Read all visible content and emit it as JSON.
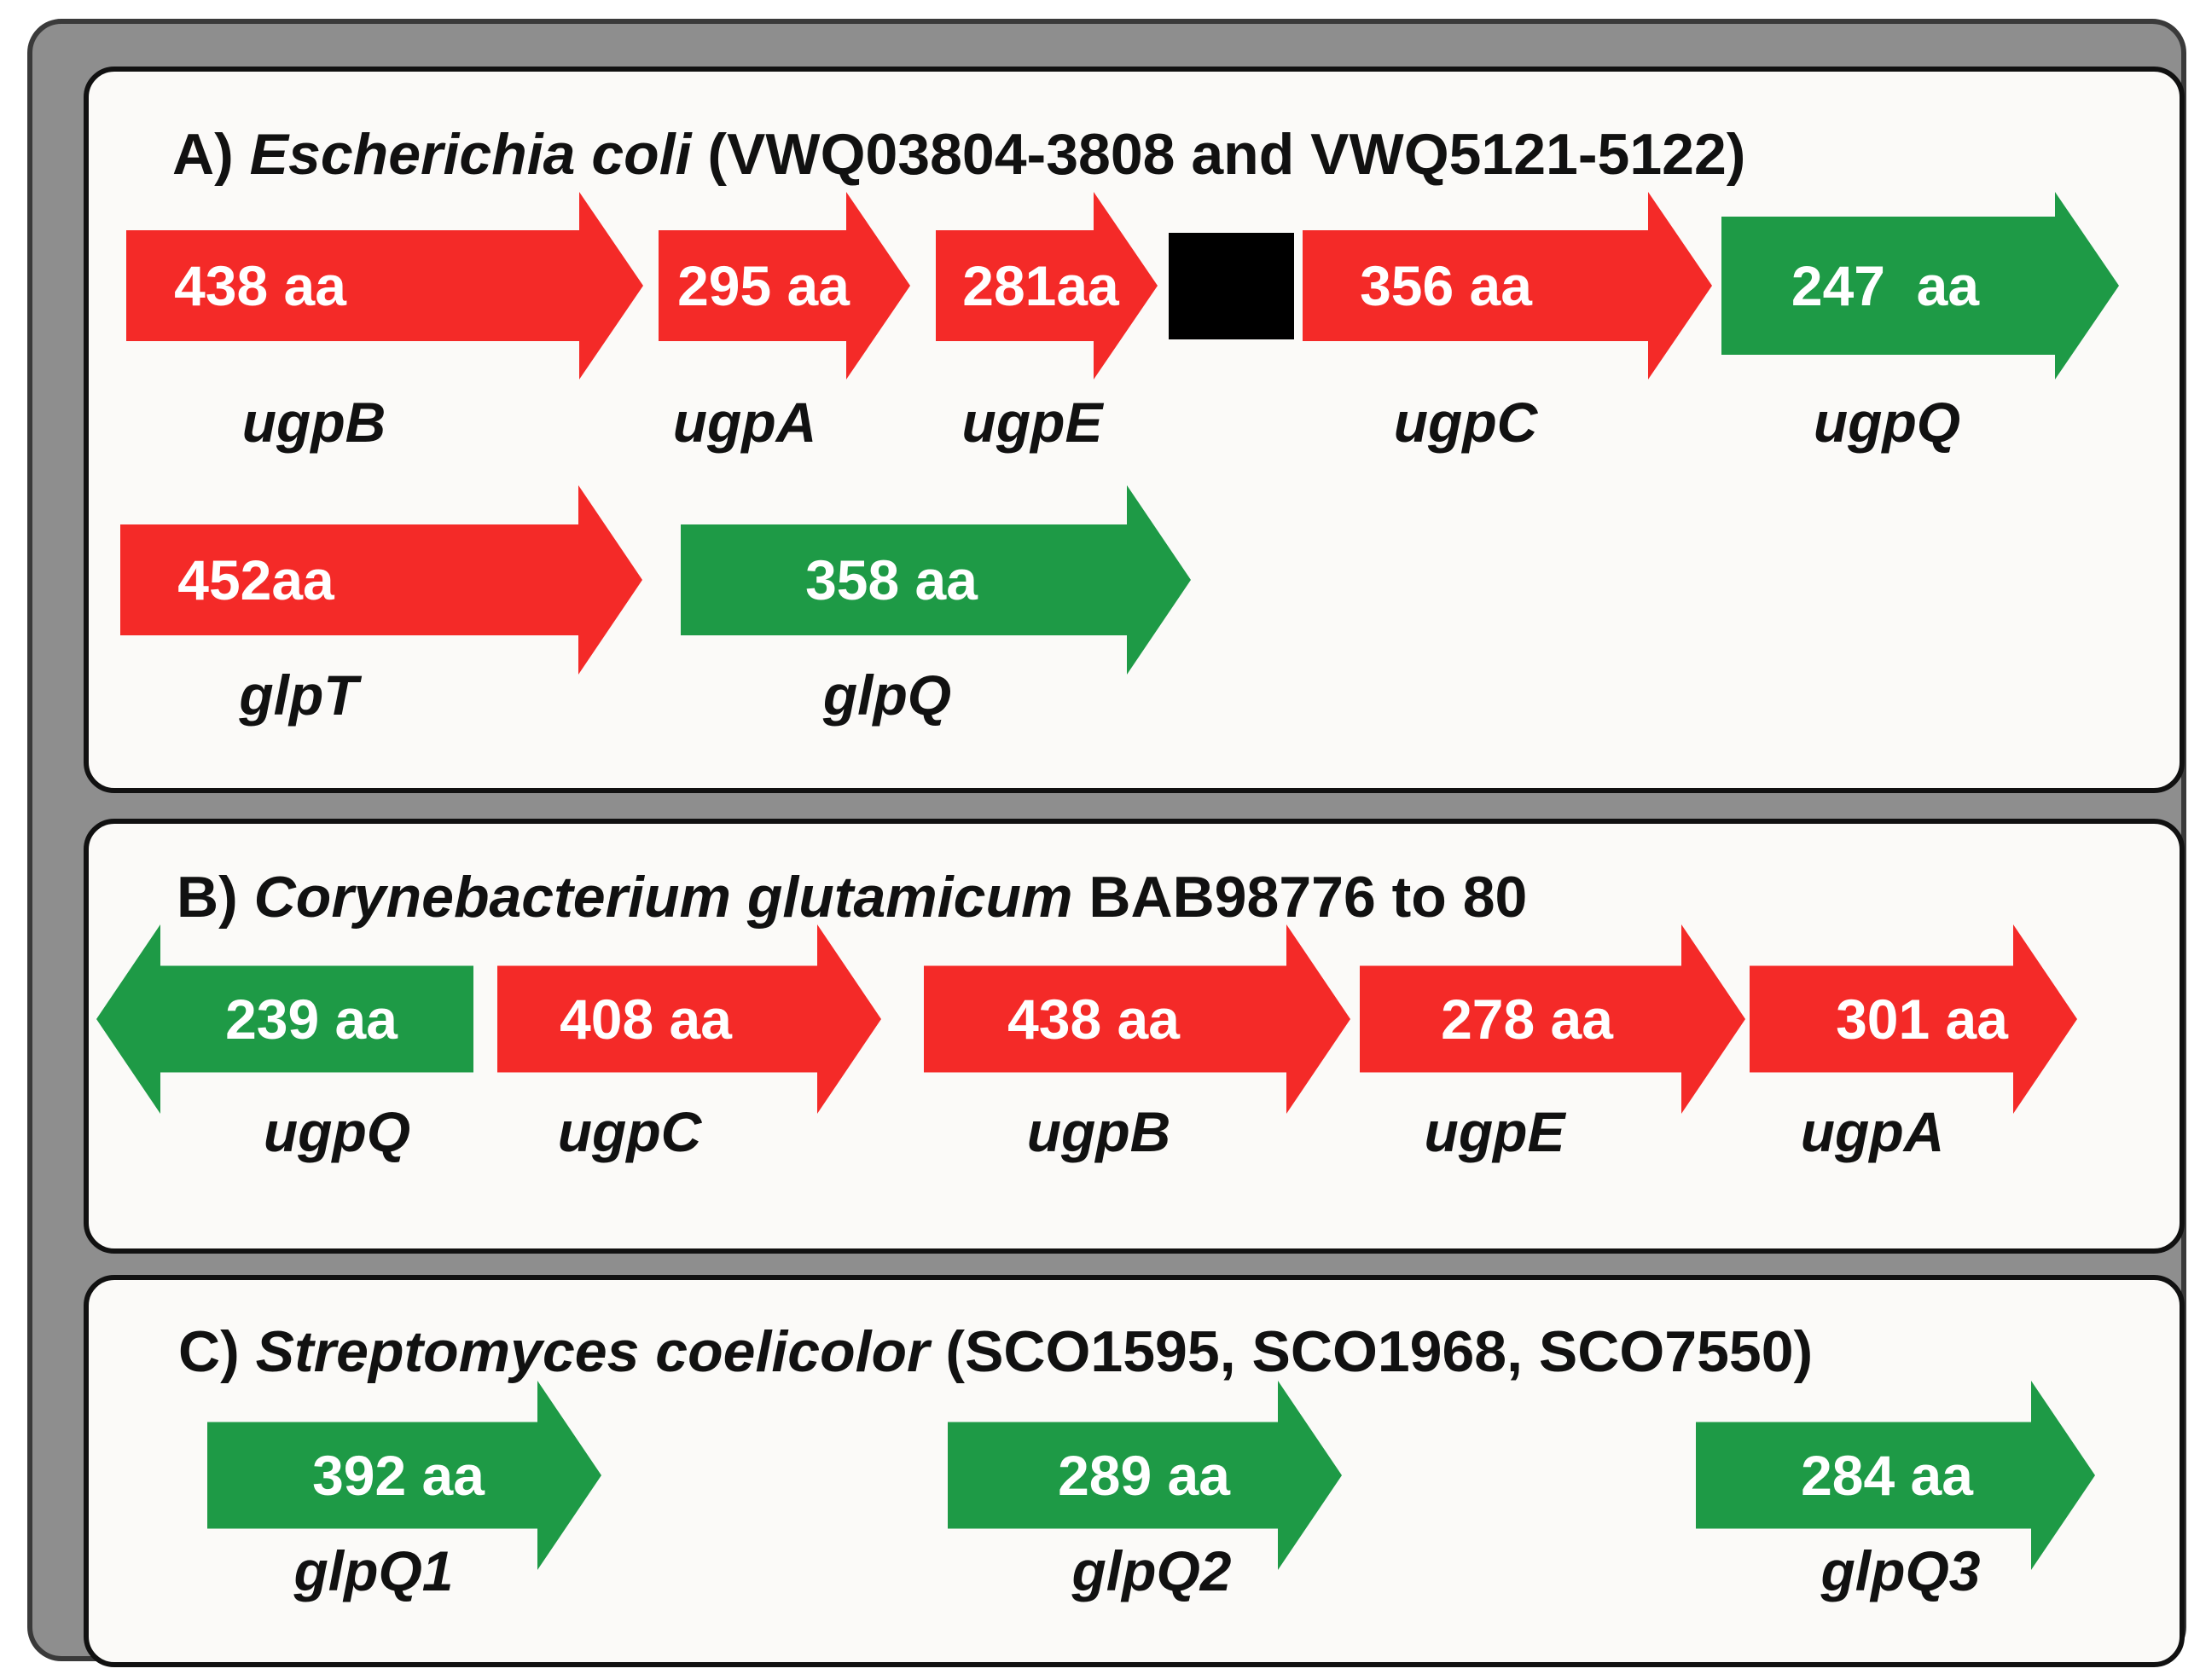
{
  "colors": {
    "transport": "#f42a28",
    "hydrolase": "#1e9a46",
    "spacer": "#000000"
  },
  "panels": [
    {
      "prefix": "A)",
      "organism": "Escherichia coli",
      "suffix": "(VWQ03804-3808 and VWQ5121-5122)",
      "genes": [
        {
          "size": "438 aa",
          "name": "ugpB",
          "color": "red",
          "direction": "right"
        },
        {
          "size": "295 aa",
          "name": "ugpA",
          "color": "red",
          "direction": "right"
        },
        {
          "size": "281aa",
          "name": "ugpE",
          "color": "red",
          "direction": "right"
        },
        {
          "size": "356 aa",
          "name": "ugpC",
          "color": "red",
          "direction": "right"
        },
        {
          "size": "247  aa",
          "name": "ugpQ",
          "color": "green",
          "direction": "right"
        },
        {
          "size": "452aa",
          "name": "glpT",
          "color": "red",
          "direction": "right"
        },
        {
          "size": "358 aa",
          "name": "glpQ",
          "color": "green",
          "direction": "right"
        }
      ]
    },
    {
      "prefix": "B)",
      "organism": "Corynebacterium glutamicum",
      "suffix": "BAB98776 to 80",
      "genes": [
        {
          "size": "239 aa",
          "name": "ugpQ",
          "color": "green",
          "direction": "left"
        },
        {
          "size": "408 aa",
          "name": "ugpC",
          "color": "red",
          "direction": "right"
        },
        {
          "size": "438 aa",
          "name": "ugpB",
          "color": "red",
          "direction": "right"
        },
        {
          "size": "278 aa",
          "name": "ugpE",
          "color": "red",
          "direction": "right"
        },
        {
          "size": "301 aa",
          "name": "ugpA",
          "color": "red",
          "direction": "right"
        }
      ]
    },
    {
      "prefix": "C)",
      "organism": "Streptomyces coelicolor",
      "suffix": "(SCO1595, SCO1968, SCO7550)",
      "genes": [
        {
          "size": "392 aa",
          "name": "glpQ1",
          "color": "green",
          "direction": "right"
        },
        {
          "size": "289 aa",
          "name": "glpQ2",
          "color": "green",
          "direction": "right"
        },
        {
          "size": "284 aa",
          "name": "glpQ3",
          "color": "green",
          "direction": "right"
        }
      ]
    }
  ]
}
